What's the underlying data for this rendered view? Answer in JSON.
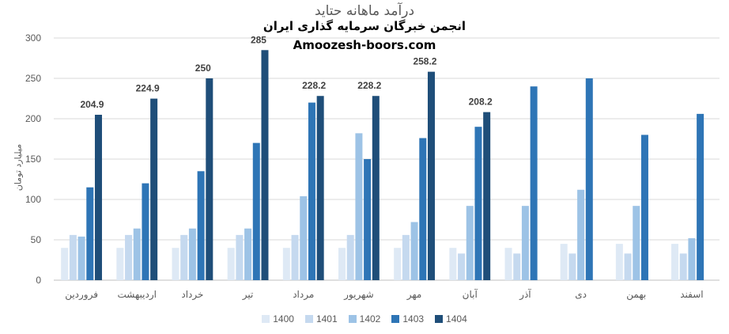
{
  "title_line1": "درآمد ماهانه حتاید",
  "title_line2": "انجمن خبرگان سرمایه گذاری ایران",
  "title_line3": "Amoozesh-boors.com",
  "colors": {
    "1400": "#dee9f5",
    "1401": "#c5d9ef",
    "1402": "#9dc3e6",
    "1403": "#2e75b6",
    "1404": "#1f4e79",
    "axis_text": "#595959",
    "grid": "#d9d9d9"
  },
  "chart_data": {
    "type": "bar",
    "ylabel": "میلیارد تومان",
    "ylim": [
      0,
      300
    ],
    "yticks": [
      0,
      50,
      100,
      150,
      200,
      250,
      300
    ],
    "grid": true,
    "legend_position": "bottom",
    "categories": [
      "فروردین",
      "اردیبهشت",
      "خرداد",
      "تیر",
      "مرداد",
      "شهریور",
      "مهر",
      "آبان",
      "آذر",
      "دی",
      "بهمن",
      "اسفند"
    ],
    "series": [
      {
        "name": "1400",
        "values": [
          40,
          40,
          40,
          40,
          40,
          40,
          40,
          40,
          40,
          45,
          45,
          45
        ]
      },
      {
        "name": "1401",
        "values": [
          56,
          56,
          56,
          56,
          56,
          56,
          56,
          33,
          33,
          33,
          33,
          33
        ]
      },
      {
        "name": "1402",
        "values": [
          54,
          64,
          64,
          64,
          104,
          182,
          72,
          92,
          92,
          112,
          92,
          52
        ]
      },
      {
        "name": "1403",
        "values": [
          115,
          120,
          135,
          170,
          220,
          150,
          176,
          190,
          240,
          250,
          180,
          206
        ]
      },
      {
        "name": "1404",
        "values": [
          204.9,
          224.9,
          250,
          285,
          228.2,
          228.2,
          258.2,
          208.2,
          null,
          null,
          null,
          null
        ]
      }
    ],
    "data_labels": {
      "series": "1404",
      "values": [
        "204.9",
        "224.9",
        "250",
        "285",
        "228.2",
        "228.2",
        "258.2",
        "208.2"
      ]
    }
  }
}
